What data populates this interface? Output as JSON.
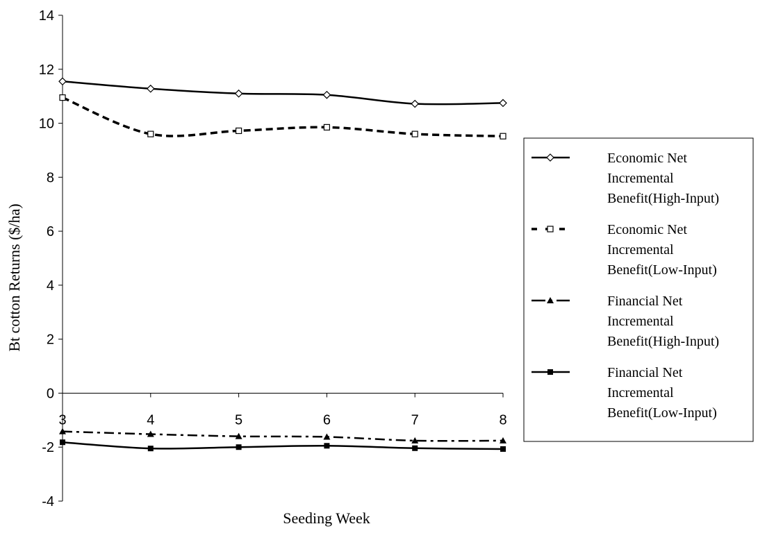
{
  "chart_data": {
    "type": "line",
    "xlabel": "Seeding Week",
    "ylabel": "Bt cotton Returns ($/ha)",
    "x": [
      3,
      4,
      5,
      6,
      7,
      8
    ],
    "xticks": [
      "3",
      "4",
      "5",
      "6",
      "7",
      "8"
    ],
    "ylim": [
      -4,
      14
    ],
    "yticks": [
      "14",
      "12",
      "10",
      "8",
      "6",
      "4",
      "2",
      "0",
      "-2",
      "-4"
    ],
    "grid": false,
    "legend_position": "right",
    "series": [
      {
        "name": "Economic Net Incremental Benefit(High-Input)",
        "name_lines": [
          "Economic Net",
          "Incremental",
          "Benefit(High-Input)"
        ],
        "values": [
          11.55,
          11.28,
          11.1,
          11.05,
          10.72,
          10.75
        ],
        "marker": "diamond-open",
        "line": "solid"
      },
      {
        "name": "Economic Net Incremental Benefit(Low-Input)",
        "name_lines": [
          "Economic Net",
          "Incremental",
          "Benefit(Low-Input)"
        ],
        "values": [
          10.95,
          9.6,
          9.72,
          9.85,
          9.6,
          9.52
        ],
        "marker": "square-open",
        "line": "dashed"
      },
      {
        "name": "Financial Net Incremental Benefit(High-Input)",
        "name_lines": [
          "Financial Net",
          "Incremental",
          "Benefit(High-Input)"
        ],
        "values": [
          -1.42,
          -1.52,
          -1.6,
          -1.62,
          -1.76,
          -1.76
        ],
        "marker": "triangle-filled",
        "line": "dashdot"
      },
      {
        "name": "Financial Net Incremental Benefit(Low-Input)",
        "name_lines": [
          "Financial Net",
          "Incremental",
          "Benefit(Low-Input)"
        ],
        "values": [
          -1.82,
          -2.05,
          -2.0,
          -1.95,
          -2.04,
          -2.07
        ],
        "marker": "square-filled",
        "line": "solid"
      }
    ]
  }
}
